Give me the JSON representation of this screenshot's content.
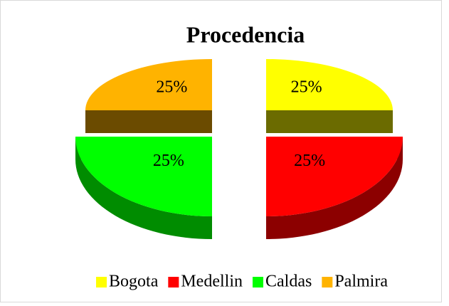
{
  "chart_data": {
    "type": "pie",
    "title": "Procedencia",
    "categories": [
      "Bogota",
      "Medellin",
      "Caldas",
      "Palmira"
    ],
    "values": [
      25,
      25,
      25,
      25
    ],
    "value_labels": [
      "25%",
      "25%",
      "25%",
      "25%"
    ],
    "colors": [
      "#ffff00",
      "#ff0000",
      "#00ff00",
      "#ffb300"
    ],
    "legend": "bottom"
  }
}
